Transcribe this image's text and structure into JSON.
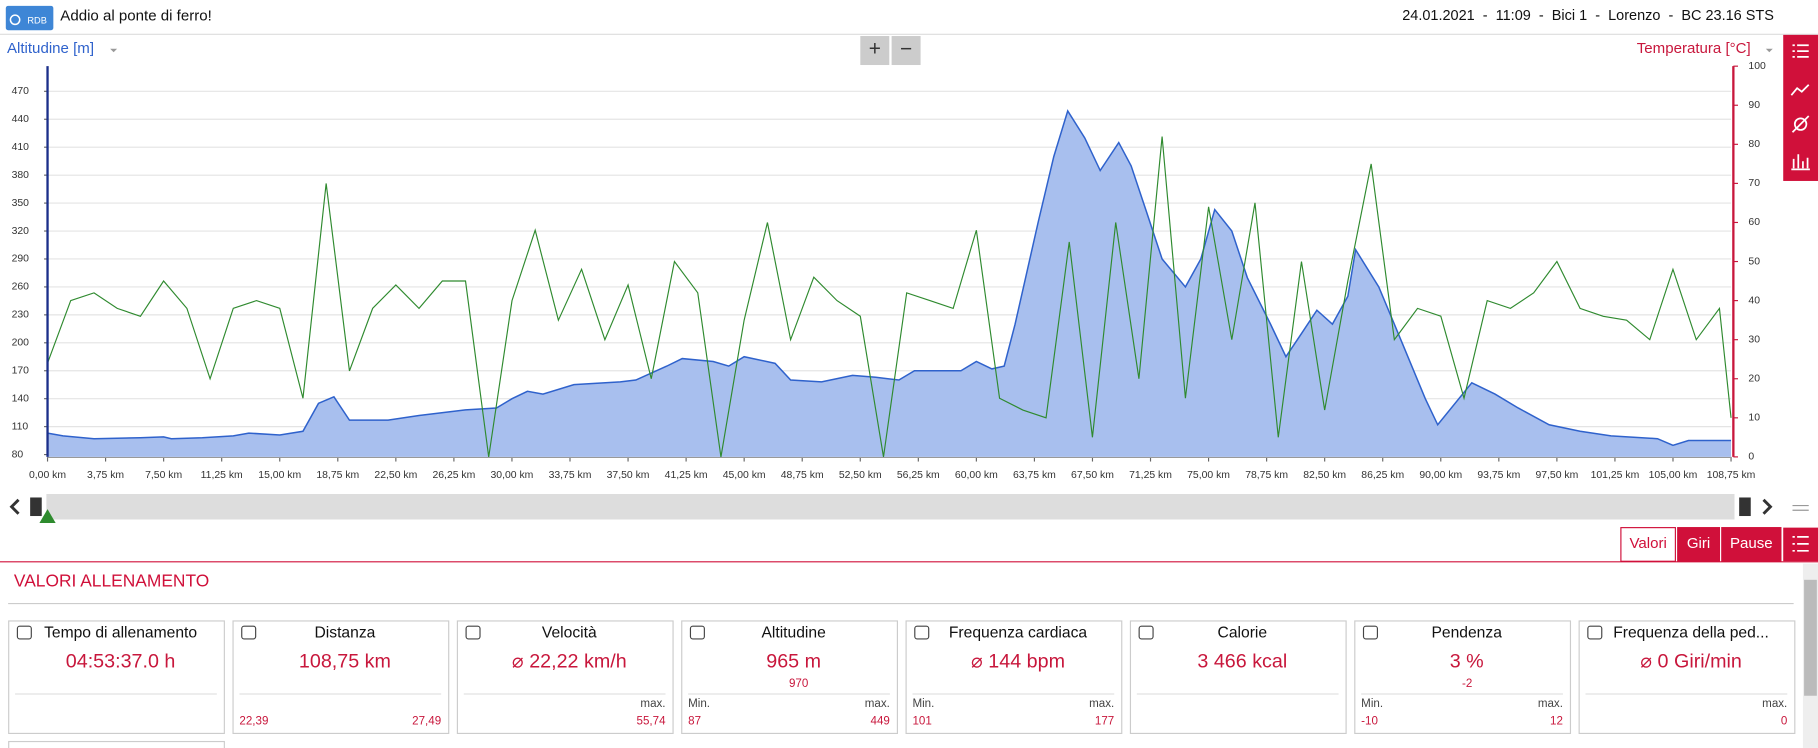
{
  "header": {
    "logo": "RDB",
    "title": "Addio al ponte di ferro!",
    "info": "24.01.2021  -  11:09  -  Bici 1  -  Lorenzo  -  BC 23.16 STS"
  },
  "toolbar": {
    "zoom_in": "+",
    "zoom_out": "−"
  },
  "chart_data": {
    "type": "area",
    "ylabel": "Altitudine [m]",
    "y2label": "Temperatura [°C]",
    "xlim": [
      0,
      108.75
    ],
    "ylim": [
      77.5,
      497
    ],
    "y2lim": [
      0,
      100
    ],
    "grid": true,
    "xticks": [
      {
        "value": 0,
        "label": "0,00 km"
      },
      {
        "value": 3.75,
        "label": "3,75 km"
      },
      {
        "value": 7.5,
        "label": "7,50 km"
      },
      {
        "value": 11.25,
        "label": "11,25 km"
      },
      {
        "value": 15,
        "label": "15,00 km"
      },
      {
        "value": 18.75,
        "label": "18,75 km"
      },
      {
        "value": 22.5,
        "label": "22,50 km"
      },
      {
        "value": 26.25,
        "label": "26,25 km"
      },
      {
        "value": 30,
        "label": "30,00 km"
      },
      {
        "value": 33.75,
        "label": "33,75 km"
      },
      {
        "value": 37.5,
        "label": "37,50 km"
      },
      {
        "value": 41.25,
        "label": "41,25 km"
      },
      {
        "value": 45,
        "label": "45,00 km"
      },
      {
        "value": 48.75,
        "label": "48,75 km"
      },
      {
        "value": 52.5,
        "label": "52,50 km"
      },
      {
        "value": 56.25,
        "label": "56,25 km"
      },
      {
        "value": 60,
        "label": "60,00 km"
      },
      {
        "value": 63.75,
        "label": "63,75 km"
      },
      {
        "value": 67.5,
        "label": "67,50 km"
      },
      {
        "value": 71.25,
        "label": "71,25 km"
      },
      {
        "value": 75,
        "label": "75,00 km"
      },
      {
        "value": 78.75,
        "label": "78,75 km"
      },
      {
        "value": 82.5,
        "label": "82,50 km"
      },
      {
        "value": 86.25,
        "label": "86,25 km"
      },
      {
        "value": 90,
        "label": "90,00 km"
      },
      {
        "value": 93.75,
        "label": "93,75 km"
      },
      {
        "value": 97.5,
        "label": "97,50 km"
      },
      {
        "value": 101.25,
        "label": "101,25 km"
      },
      {
        "value": 105,
        "label": "105,00 km"
      },
      {
        "value": 108.75,
        "label": "108,75 km"
      }
    ],
    "yticks": [
      80,
      110,
      140,
      170,
      200,
      230,
      260,
      290,
      320,
      350,
      380,
      410,
      440,
      470
    ],
    "y2ticks": [
      0,
      10,
      20,
      30,
      40,
      50,
      60,
      70,
      80,
      90,
      100
    ],
    "series": [
      {
        "color": "#2f62cc",
        "fill": "#a8bfee",
        "x": [
          0,
          1,
          3,
          6,
          7.5,
          8,
          10,
          12,
          13,
          15,
          16.5,
          17.5,
          18.5,
          19.5,
          22,
          24,
          27,
          29,
          30,
          31,
          32,
          34,
          37,
          38,
          40,
          41,
          43,
          44,
          45,
          47,
          48,
          50,
          52,
          53.5,
          55,
          56,
          59,
          60,
          61,
          61.8,
          62.5,
          64,
          65,
          65.9,
          67,
          68,
          69.2,
          70,
          71,
          72,
          73.5,
          74.5,
          75.4,
          76.5,
          77.5,
          79,
          80,
          81,
          82,
          83,
          84,
          84.5,
          86,
          87.5,
          89,
          89.8,
          92,
          93.5,
          95,
          97,
          99,
          101,
          104,
          105,
          106,
          108.75
        ],
        "values": [
          103,
          100,
          97,
          98,
          99,
          97,
          98,
          100,
          103,
          101,
          105,
          135,
          142,
          117,
          117,
          122,
          128,
          130,
          140,
          148,
          145,
          155,
          158,
          160,
          175,
          183,
          180,
          175,
          185,
          178,
          160,
          158,
          165,
          163,
          160,
          170,
          170,
          180,
          172,
          175,
          220,
          330,
          400,
          449,
          420,
          385,
          415,
          390,
          340,
          290,
          260,
          290,
          343,
          320,
          270,
          220,
          185,
          210,
          235,
          220,
          250,
          300,
          260,
          200,
          140,
          112,
          157,
          145,
          130,
          112,
          105,
          100,
          97,
          90,
          95,
          95
        ]
      },
      {
        "type": "line",
        "axis": "y2",
        "color": "#2f8a2f",
        "x": [
          0,
          1.5,
          3,
          4.5,
          6,
          7.5,
          9,
          10.5,
          12,
          13.5,
          15,
          16.5,
          18,
          19.5,
          21,
          22.5,
          24,
          25.5,
          27,
          28.5,
          30,
          31.5,
          33,
          34.5,
          36,
          37.5,
          39,
          40.5,
          42,
          43.5,
          45,
          46.5,
          48,
          49.5,
          51,
          52.5,
          54,
          55.5,
          57,
          58.5,
          60,
          61.5,
          63,
          64.5,
          66,
          67.5,
          69,
          70.5,
          72,
          73.5,
          75,
          76.5,
          78,
          79.5,
          81,
          82.5,
          84,
          85.5,
          87,
          88.5,
          90,
          91.5,
          93,
          94.5,
          96,
          97.5,
          99,
          100.5,
          102,
          103.5,
          105,
          106.5,
          108,
          108.75
        ],
        "values": [
          24,
          40,
          42,
          38,
          36,
          45,
          38,
          20,
          38,
          40,
          38,
          15,
          70,
          22,
          38,
          44,
          38,
          45,
          45,
          0,
          40,
          58,
          35,
          48,
          30,
          44,
          20,
          50,
          42,
          0,
          35,
          60,
          30,
          46,
          40,
          36,
          0,
          42,
          40,
          38,
          58,
          15,
          12,
          10,
          55,
          5,
          60,
          20,
          82,
          15,
          64,
          30,
          65,
          5,
          50,
          12,
          45,
          75,
          30,
          38,
          36,
          15,
          40,
          38,
          42,
          50,
          38,
          36,
          35,
          30,
          48,
          30,
          38,
          10
        ]
      }
    ]
  },
  "tabs": [
    "Valori",
    "Giri",
    "Pause"
  ],
  "section_title": "VALORI ALLENAMENTO",
  "cards": [
    {
      "title": "Tempo di allenamento",
      "value": "04:53:37.0 h"
    },
    {
      "title": "Distanza",
      "value": "108,75 km",
      "min": "22,39",
      "max": "27,49"
    },
    {
      "title": "Velocità",
      "value": "⌀ 22,22 km/h",
      "max_label": "max.",
      "max": "55,74"
    },
    {
      "title": "Altitudine",
      "value": "965 m",
      "sub": "970",
      "min_label": "Min.",
      "min": "87",
      "max_label": "max.",
      "max": "449"
    },
    {
      "title": "Frequenza cardiaca",
      "value": "⌀ 144 bpm",
      "min_label": "Min.",
      "min": "101",
      "max_label": "max.",
      "max": "177"
    },
    {
      "title": "Calorie",
      "value": "3 466 kcal"
    },
    {
      "title": "Pendenza",
      "value": "3 %",
      "sub": "-2",
      "min_label": "Min.",
      "min": "-10",
      "max_label": "max.",
      "max": "12"
    },
    {
      "title": "Frequenza della ped...",
      "value": "⌀ 0 Giri/min",
      "max_label": "max.",
      "max": "0"
    }
  ]
}
